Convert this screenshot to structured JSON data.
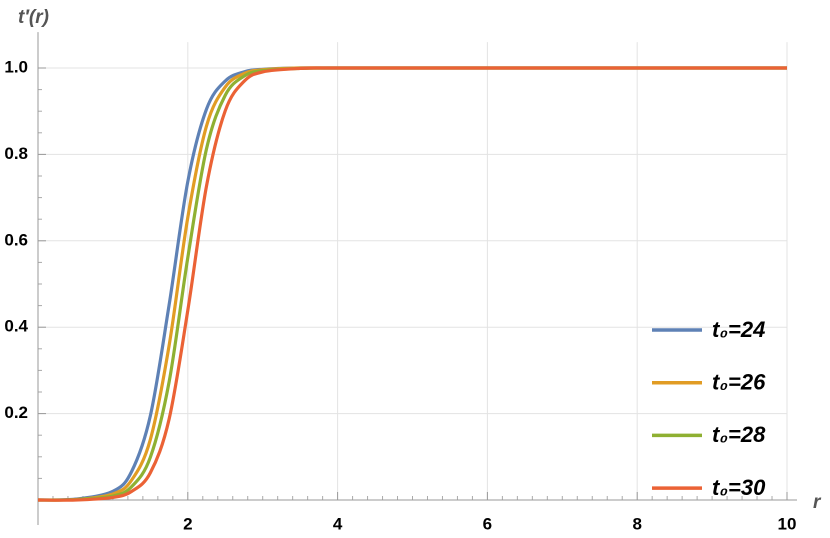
{
  "chart_data": {
    "type": "line",
    "x_label": "r",
    "y_label": "t′(r)",
    "x": [
      0,
      0.5,
      1,
      1.25,
      1.5,
      1.75,
      2,
      2.25,
      2.5,
      2.75,
      3,
      3.5,
      4,
      6,
      8,
      10
    ],
    "series": [
      {
        "name": "t₀=24",
        "color": "#5e81b5",
        "values": [
          0,
          0.002,
          0.02,
          0.066,
          0.195,
          0.451,
          0.737,
          0.905,
          0.97,
          0.991,
          0.997,
          1,
          1,
          1,
          1,
          1
        ]
      },
      {
        "name": "t₀=26",
        "color": "#e19c24",
        "values": [
          0,
          0.001,
          0.014,
          0.046,
          0.14,
          0.357,
          0.654,
          0.866,
          0.956,
          0.987,
          0.996,
          1,
          1,
          1,
          1,
          1
        ]
      },
      {
        "name": "t₀=28",
        "color": "#8fb032",
        "values": [
          0,
          0.001,
          0.009,
          0.031,
          0.099,
          0.273,
          0.561,
          0.813,
          0.937,
          0.981,
          0.994,
          0.999,
          1,
          1,
          1,
          1
        ]
      },
      {
        "name": "t₀=30",
        "color": "#eb6235",
        "values": [
          0,
          0,
          0.006,
          0.02,
          0.063,
          0.187,
          0.439,
          0.727,
          0.901,
          0.969,
          0.991,
          0.999,
          1,
          1,
          1,
          1
        ]
      }
    ],
    "xlim": [
      0,
      10
    ],
    "ylim": [
      0,
      1.06
    ],
    "xticks": [
      2,
      4,
      6,
      8,
      10
    ],
    "yticks": [
      0.2,
      0.4,
      0.6,
      0.8,
      {
        "value": 1,
        "label": "1.0"
      }
    ],
    "grid": true,
    "legend": "lower right"
  }
}
